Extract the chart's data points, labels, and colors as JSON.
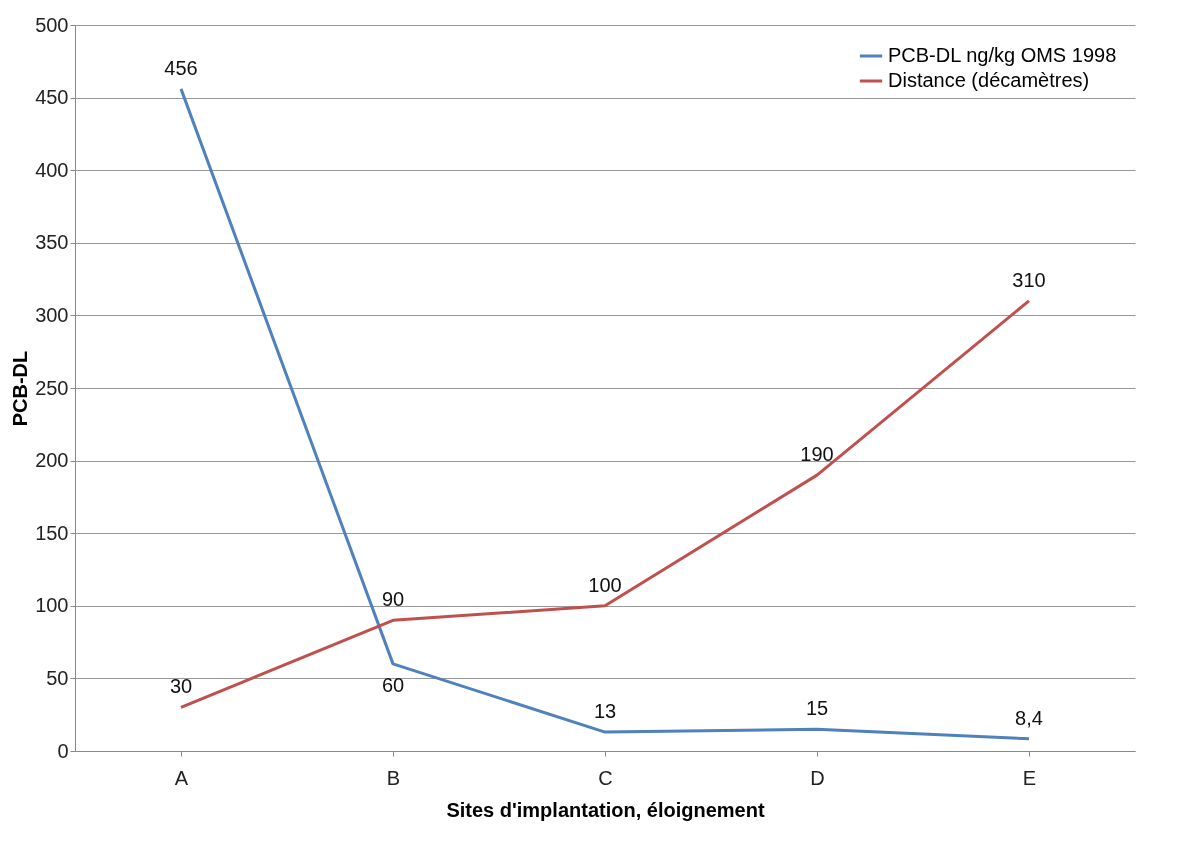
{
  "chart_data": {
    "type": "line",
    "xlabel": "Sites d'implantation, éloignement",
    "ylabel": "PCB-DL",
    "categories": [
      "A",
      "B",
      "C",
      "D",
      "E"
    ],
    "series": [
      {
        "name": "PCB-DL ng/kg OMS 1998",
        "color": "#4f81bd",
        "values": [
          456,
          60,
          13,
          15,
          8.4
        ],
        "value_labels": [
          "456",
          "60",
          "13",
          "15",
          "8,4"
        ]
      },
      {
        "name": "Distance (décamètres)",
        "color": "#c0504d",
        "values": [
          30,
          90,
          100,
          190,
          310
        ],
        "value_labels": [
          "30",
          "90",
          "100",
          "190",
          "310"
        ]
      }
    ],
    "ylim": [
      0,
      500
    ],
    "yticks": [
      0,
      50,
      100,
      150,
      200,
      250,
      300,
      350,
      400,
      450,
      500
    ],
    "grid": "y",
    "legend": "top right",
    "marker": "none",
    "line_style": "solid"
  }
}
